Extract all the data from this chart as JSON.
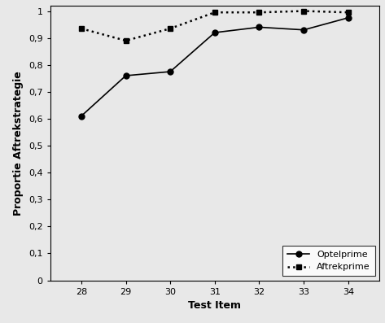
{
  "x": [
    28,
    29,
    30,
    31,
    32,
    33,
    34
  ],
  "optelprime": [
    0.61,
    0.76,
    0.775,
    0.92,
    0.94,
    0.93,
    0.975
  ],
  "aftrekprime": [
    0.935,
    0.89,
    0.935,
    0.995,
    0.995,
    1.0,
    0.995
  ],
  "xlabel": "Test Item",
  "ylabel": "Proportie Aftrekstrategie",
  "legend_optelprime": "Optelprime",
  "legend_aftrekprime": "Aftrekprime",
  "ylim": [
    0,
    1.02
  ],
  "xlim": [
    27.3,
    34.7
  ],
  "yticks": [
    0,
    0.1,
    0.2,
    0.3,
    0.4,
    0.5,
    0.6,
    0.7,
    0.8,
    0.9,
    1.0
  ],
  "ytick_labels": [
    "0",
    "0,1",
    "0,2",
    "0,3",
    "0,4",
    "0,5",
    "0,6",
    "0,7",
    "0,8",
    "0,9",
    "1"
  ],
  "line_color": "#000000",
  "marker_optelprime": "o",
  "marker_aftrekprime": "s",
  "marker_size": 5,
  "axis_label_fontsize": 9,
  "tick_fontsize": 8,
  "legend_fontsize": 8,
  "figsize": [
    4.73,
    3.97
  ],
  "dpi": 100
}
